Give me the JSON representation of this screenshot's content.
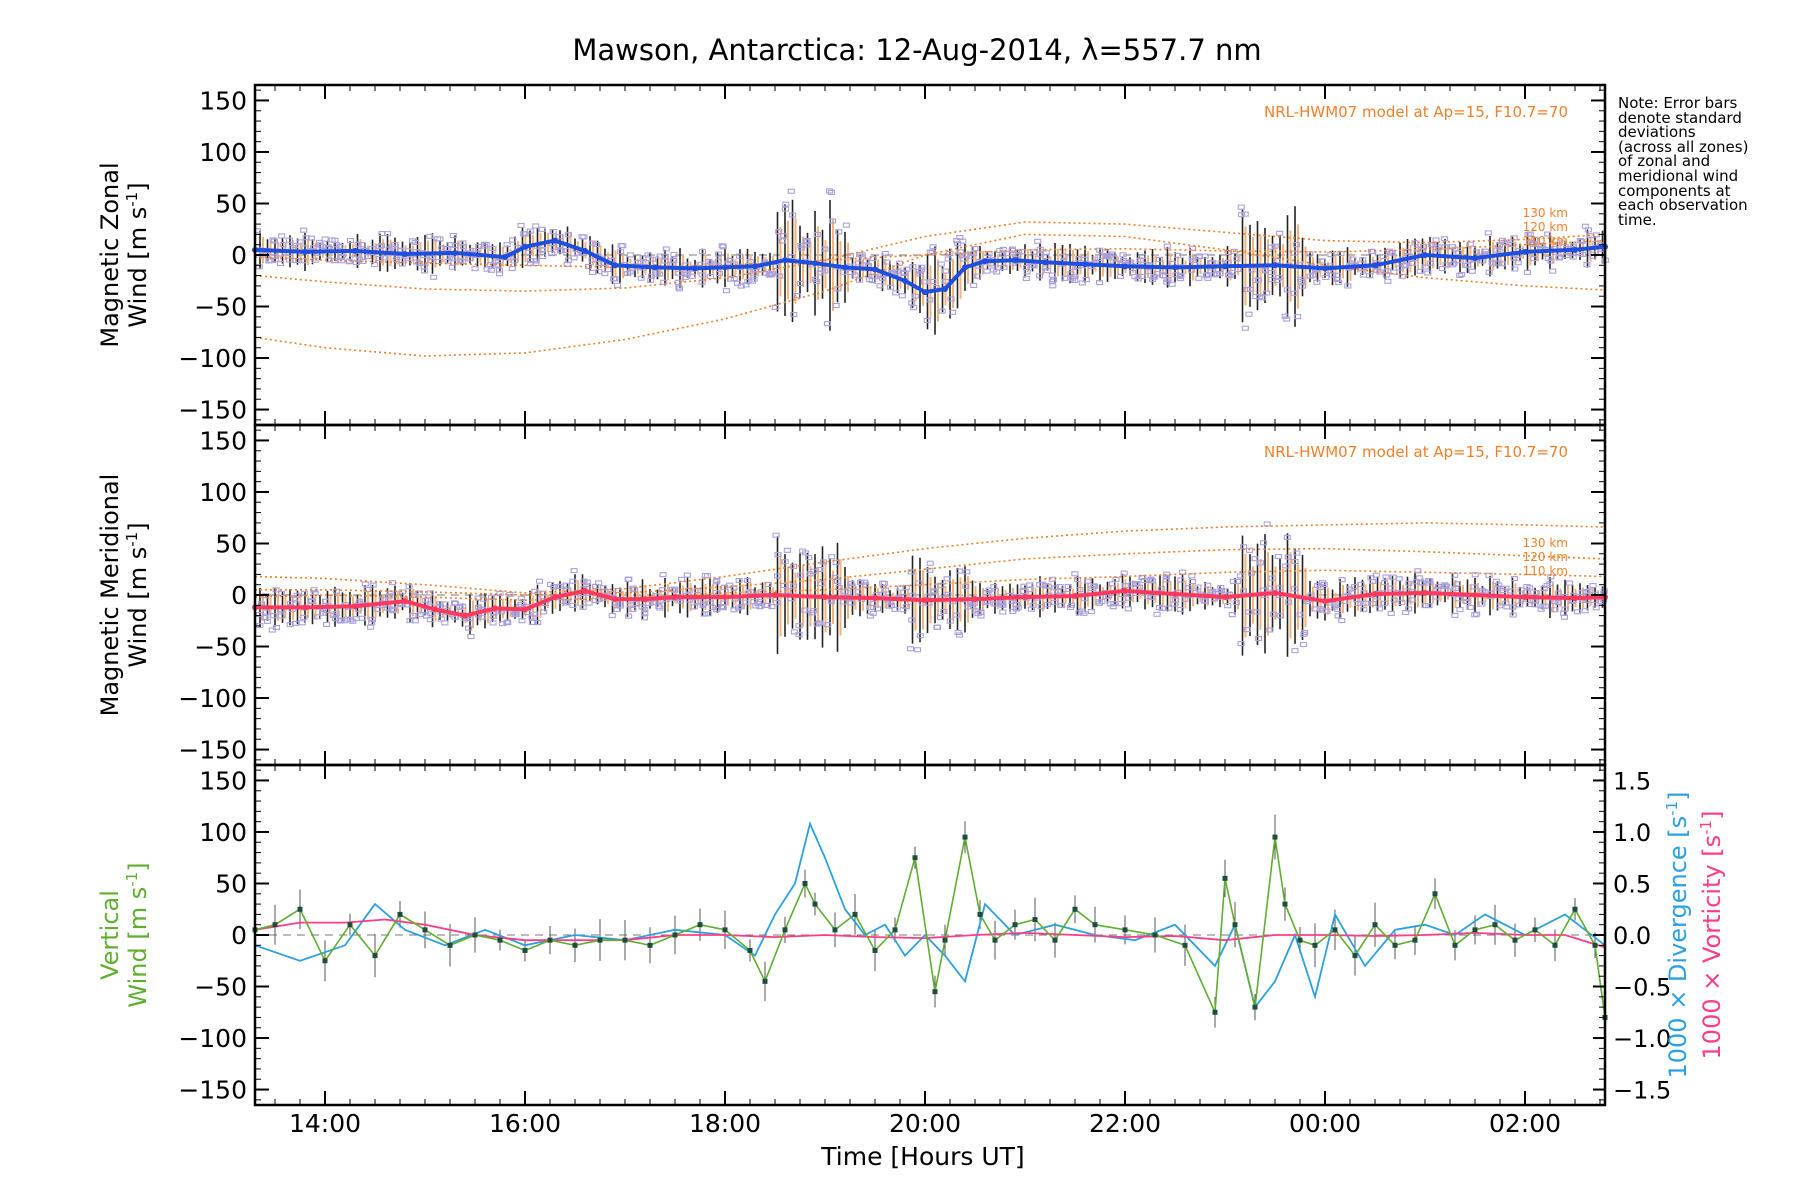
{
  "chart_data": {
    "type": "line",
    "title": "Mawson, Antarctica: 12-Aug-2014, λ=557.7 nm",
    "xlabel": "Time [Hours UT]",
    "x_units": "hours UT (13.3 = 13:18 on 12-Aug, 26.8 = 02:48 on 13-Aug)",
    "xlim": [
      13.3,
      26.8
    ],
    "x_ticks": [
      {
        "value": 14,
        "label": "14:00"
      },
      {
        "value": 16,
        "label": "16:00"
      },
      {
        "value": 18,
        "label": "18:00"
      },
      {
        "value": 20,
        "label": "20:00"
      },
      {
        "value": 22,
        "label": "22:00"
      },
      {
        "value": 24,
        "label": "00:00"
      },
      {
        "value": 26,
        "label": "02:00"
      }
    ],
    "y_ticks": [
      {
        "value": 150,
        "label": "150"
      },
      {
        "value": 100,
        "label": "100"
      },
      {
        "value": 50,
        "label": "50"
      },
      {
        "value": 0,
        "label": "0"
      },
      {
        "value": -50,
        "label": "−50"
      },
      {
        "value": -100,
        "label": "−100"
      },
      {
        "value": -150,
        "label": "−150"
      }
    ],
    "note": [
      "Note: Error bars",
      "denote standard",
      "deviations",
      "(across all zones)",
      "of zonal and",
      "meridional wind",
      "components at",
      "each observation",
      "time."
    ],
    "panels": [
      {
        "id": "zonal",
        "ylabel_line1": "Magnetic Zonal",
        "ylabel_line2": "Wind [m s",
        "ylabel_sup": "-1",
        "ylabel_close": "]",
        "ylim": [
          -165,
          165
        ],
        "model_label": "NRL-HWM07 model at Ap=15, F10.7=70",
        "model_alt_labels": [
          "130 km",
          "120 km",
          "110 km"
        ],
        "series": [
          {
            "role": "mean",
            "color": "#1f4fe0",
            "x": [
              13.3,
              13.8,
              14.3,
              14.8,
              15.3,
              15.8,
              16.0,
              16.3,
              16.6,
              16.9,
              17.3,
              17.7,
              18.0,
              18.3,
              18.6,
              18.9,
              19.2,
              19.5,
              19.8,
              20.0,
              20.2,
              20.4,
              20.6,
              20.9,
              21.2,
              21.6,
              22.0,
              22.5,
              23.0,
              23.5,
              24.0,
              24.5,
              25.0,
              25.5,
              26.0,
              26.5,
              26.8
            ],
            "y": [
              5,
              3,
              4,
              1,
              2,
              -2,
              8,
              14,
              4,
              -10,
              -12,
              -13,
              -12,
              -11,
              -5,
              -8,
              -12,
              -14,
              -25,
              -36,
              -33,
              -12,
              -6,
              -5,
              -7,
              -9,
              -11,
              -12,
              -11,
              -10,
              -13,
              -10,
              0,
              -3,
              3,
              5,
              8
            ]
          },
          {
            "role": "model",
            "altitude": "130 km",
            "color": "#f07f2a",
            "x": [
              13.3,
              14.0,
              15.0,
              16.0,
              17.0,
              18.0,
              19.0,
              20.0,
              21.0,
              22.0,
              23.0,
              24.0,
              25.0,
              26.0,
              26.8
            ],
            "y": [
              -80,
              -90,
              -98,
              -95,
              -82,
              -62,
              -35,
              0,
              20,
              18,
              5,
              -10,
              -22,
              -30,
              -34
            ]
          },
          {
            "role": "model",
            "altitude": "120 km",
            "color": "#f07f2a",
            "x": [
              13.3,
              14.0,
              15.0,
              16.0,
              17.0,
              18.0,
              19.0,
              20.0,
              21.0,
              22.0,
              23.0,
              24.0,
              25.0,
              26.0,
              26.8
            ],
            "y": [
              -20,
              -26,
              -33,
              -35,
              -32,
              -22,
              -5,
              18,
              32,
              30,
              22,
              14,
              12,
              15,
              20
            ]
          },
          {
            "role": "model",
            "altitude": "110 km",
            "color": "#f07f2a",
            "x": [
              13.3,
              14.0,
              15.0,
              16.0,
              17.0,
              18.0,
              19.0,
              20.0,
              21.0,
              22.0,
              23.0,
              24.0,
              25.0,
              26.0,
              26.8
            ],
            "y": [
              -2,
              -5,
              -8,
              -10,
              -12,
              -10,
              -5,
              0,
              5,
              6,
              4,
              3,
              5,
              10,
              14
            ]
          }
        ]
      },
      {
        "id": "meridional",
        "ylabel_line1": "Magnetic Meridional",
        "ylabel_line2": "Wind [m s",
        "ylabel_sup": "-1",
        "ylabel_close": "]",
        "ylim": [
          -165,
          165
        ],
        "model_label": "NRL-HWM07 model at Ap=15, F10.7=70",
        "model_alt_labels": [
          "130 km",
          "120 km",
          "110 km"
        ],
        "series": [
          {
            "role": "mean",
            "color": "#ff3860",
            "x": [
              13.3,
              13.8,
              14.3,
              14.8,
              15.1,
              15.4,
              15.7,
              16.0,
              16.3,
              16.6,
              16.9,
              17.2,
              17.5,
              18.0,
              18.5,
              19.0,
              19.5,
              20.0,
              20.5,
              21.0,
              21.5,
              22.0,
              22.5,
              23.0,
              23.5,
              24.0,
              24.5,
              25.0,
              25.5,
              26.0,
              26.5,
              26.8
            ],
            "y": [
              -12,
              -12,
              -11,
              -6,
              -14,
              -20,
              -13,
              -14,
              -2,
              4,
              -4,
              -4,
              -2,
              -2,
              0,
              -2,
              -3,
              -5,
              -4,
              -2,
              -1,
              4,
              1,
              -2,
              2,
              -6,
              1,
              2,
              0,
              -2,
              -3,
              -2
            ]
          },
          {
            "role": "model",
            "altitude": "130 km",
            "color": "#f07f2a",
            "x": [
              13.3,
              14.0,
              15.0,
              16.0,
              17.0,
              18.0,
              19.0,
              20.0,
              21.0,
              22.0,
              23.0,
              24.0,
              25.0,
              26.0,
              26.8
            ],
            "y": [
              18,
              16,
              10,
              2,
              6,
              18,
              32,
              45,
              55,
              62,
              66,
              68,
              70,
              68,
              66
            ]
          },
          {
            "role": "model",
            "altitude": "120 km",
            "color": "#f07f2a",
            "x": [
              13.3,
              14.0,
              15.0,
              16.0,
              17.0,
              18.0,
              19.0,
              20.0,
              21.0,
              22.0,
              23.0,
              24.0,
              25.0,
              26.0,
              26.8
            ],
            "y": [
              5,
              5,
              3,
              0,
              2,
              8,
              15,
              25,
              35,
              40,
              44,
              45,
              42,
              38,
              35
            ]
          },
          {
            "role": "model",
            "altitude": "110 km",
            "color": "#f07f2a",
            "x": [
              13.3,
              14.0,
              15.0,
              16.0,
              17.0,
              18.0,
              19.0,
              20.0,
              21.0,
              22.0,
              23.0,
              24.0,
              25.0,
              26.0,
              26.8
            ],
            "y": [
              -2,
              0,
              -2,
              -5,
              -3,
              2,
              5,
              10,
              15,
              18,
              22,
              24,
              22,
              20,
              18
            ]
          }
        ]
      },
      {
        "id": "vertical",
        "ylabel_line1": "Vertical",
        "ylabel_line2": "Wind [m s",
        "ylabel_sup": "-1",
        "ylabel_close": "]",
        "ylim": [
          -165,
          165
        ],
        "y2lim": [
          -1.65,
          1.65
        ],
        "y2_ticks": [
          {
            "value": 1.5,
            "label": "1.5"
          },
          {
            "value": 1.0,
            "label": "1.0"
          },
          {
            "value": 0.5,
            "label": "0.5"
          },
          {
            "value": 0.0,
            "label": "0.0"
          },
          {
            "value": -0.5,
            "label": "−0.5"
          },
          {
            "value": -1.0,
            "label": "−1.0"
          },
          {
            "value": -1.5,
            "label": "−1.5"
          }
        ],
        "y2label_div": "1000 × Divergence [s",
        "y2label_vor": "1000 × Vorticity [s",
        "y2label_sup": "-1",
        "y2label_close": "]",
        "series": [
          {
            "role": "vertical_wind",
            "color": "#5fae2f",
            "x": [
              13.3,
              13.5,
              13.75,
              14.0,
              14.25,
              14.5,
              14.75,
              15.0,
              15.25,
              15.5,
              15.75,
              16.0,
              16.25,
              16.5,
              16.75,
              17.0,
              17.25,
              17.5,
              17.75,
              18.0,
              18.25,
              18.4,
              18.6,
              18.8,
              18.9,
              19.1,
              19.3,
              19.5,
              19.7,
              19.9,
              20.1,
              20.2,
              20.4,
              20.55,
              20.7,
              20.9,
              21.1,
              21.3,
              21.5,
              21.7,
              22.0,
              22.3,
              22.6,
              22.9,
              23.0,
              23.1,
              23.3,
              23.5,
              23.6,
              23.75,
              23.9,
              24.1,
              24.3,
              24.5,
              24.7,
              24.9,
              25.1,
              25.3,
              25.5,
              25.7,
              25.9,
              26.1,
              26.3,
              26.5,
              26.7,
              26.8
            ],
            "y": [
              5,
              10,
              25,
              -25,
              10,
              -20,
              20,
              5,
              -10,
              0,
              -5,
              -15,
              -5,
              -10,
              -5,
              -5,
              -10,
              0,
              10,
              5,
              -15,
              -45,
              5,
              50,
              30,
              5,
              20,
              -15,
              5,
              75,
              -55,
              -5,
              95,
              20,
              -5,
              10,
              15,
              -5,
              25,
              10,
              5,
              0,
              -10,
              -75,
              55,
              10,
              -70,
              95,
              30,
              -5,
              -10,
              5,
              -20,
              10,
              -10,
              -5,
              40,
              -10,
              5,
              10,
              -5,
              5,
              -10,
              25,
              -10,
              -80
            ]
          },
          {
            "role": "divergence",
            "color": "#2aa0e0",
            "x": [
              13.3,
              13.75,
              14.2,
              14.5,
              14.8,
              15.2,
              15.6,
              16.0,
              16.5,
              17.0,
              17.5,
              18.0,
              18.3,
              18.5,
              18.7,
              18.85,
              19.0,
              19.2,
              19.4,
              19.6,
              19.8,
              20.0,
              20.2,
              20.4,
              20.6,
              20.9,
              21.3,
              21.7,
              22.1,
              22.5,
              22.9,
              23.1,
              23.3,
              23.5,
              23.7,
              23.9,
              24.1,
              24.4,
              24.7,
              25.0,
              25.3,
              25.6,
              26.0,
              26.4,
              26.8
            ],
            "y": [
              -0.1,
              -0.25,
              -0.1,
              0.3,
              0.05,
              -0.1,
              0.05,
              -0.1,
              0.0,
              -0.05,
              0.05,
              0.0,
              -0.2,
              0.2,
              0.5,
              1.08,
              0.75,
              0.25,
              0.0,
              0.1,
              -0.2,
              0.0,
              -0.2,
              -0.45,
              0.3,
              0.0,
              0.1,
              0.0,
              -0.05,
              0.1,
              -0.3,
              0.1,
              -0.7,
              -0.45,
              0.0,
              -0.6,
              0.2,
              -0.3,
              0.05,
              0.1,
              0.0,
              0.2,
              0.0,
              0.2,
              -0.1
            ]
          },
          {
            "role": "vorticity",
            "color": "#ff3d86",
            "x": [
              13.3,
              13.75,
              14.2,
              14.6,
              15.0,
              15.5,
              16.0,
              16.5,
              17.0,
              17.5,
              18.0,
              18.5,
              19.0,
              19.5,
              20.0,
              20.5,
              21.0,
              21.5,
              22.0,
              22.5,
              23.0,
              23.5,
              24.0,
              24.5,
              25.0,
              25.5,
              26.0,
              26.4,
              26.8
            ],
            "y": [
              0.05,
              0.12,
              0.12,
              0.15,
              0.1,
              0.0,
              -0.05,
              -0.05,
              -0.05,
              0.0,
              0.0,
              -0.02,
              0.0,
              -0.02,
              -0.03,
              0.0,
              0.02,
              0.0,
              -0.02,
              -0.01,
              -0.05,
              0.0,
              0.0,
              -0.01,
              0.0,
              0.02,
              0.0,
              0.0,
              -0.12
            ]
          }
        ]
      }
    ]
  }
}
